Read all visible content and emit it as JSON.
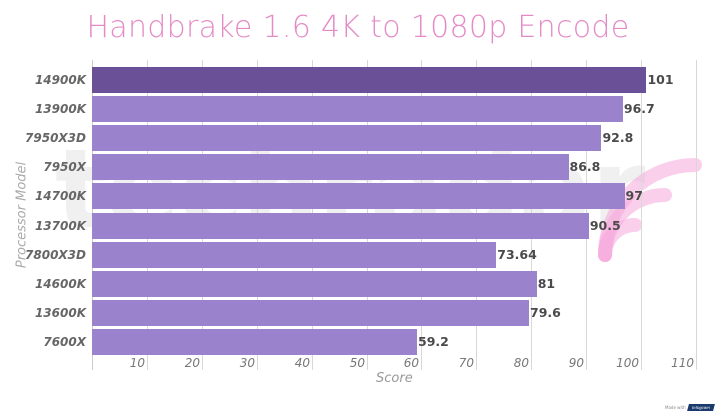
{
  "title": "Handbrake 1.6 4K to 1080p Encode",
  "colors": {
    "title": "#e48bc6",
    "bar": "#9b82cc",
    "bar_highlight": "#6a5096",
    "watermark_accent": "#f5a8dc"
  },
  "watermark": {
    "text": "techradar"
  },
  "badge": {
    "prefix": "Made with",
    "brand": "Infogram"
  },
  "chart_data": {
    "type": "bar",
    "orientation": "horizontal",
    "title": "Handbrake 1.6 4K to 1080p Encode",
    "xlabel": "Score",
    "ylabel": "Processor Model",
    "categories": [
      "14900K",
      "13900K",
      "7950X3D",
      "7950X",
      "14700K",
      "13700K",
      "7800X3D",
      "14600K",
      "13600K",
      "7600X"
    ],
    "values": [
      101,
      96.7,
      92.8,
      86.8,
      97,
      90.5,
      73.64,
      81,
      79.6,
      59.2
    ],
    "value_labels": [
      "101",
      "96.7",
      "92.8",
      "86.8",
      "97",
      "90.5",
      "73.64",
      "81",
      "79.6",
      "59.2"
    ],
    "highlight_index": 0,
    "xlim": [
      0,
      110
    ],
    "xticks": [
      "10",
      "20",
      "30",
      "40",
      "50",
      "60",
      "70",
      "80",
      "90",
      "100",
      "110"
    ],
    "grid": true,
    "legend": null
  }
}
